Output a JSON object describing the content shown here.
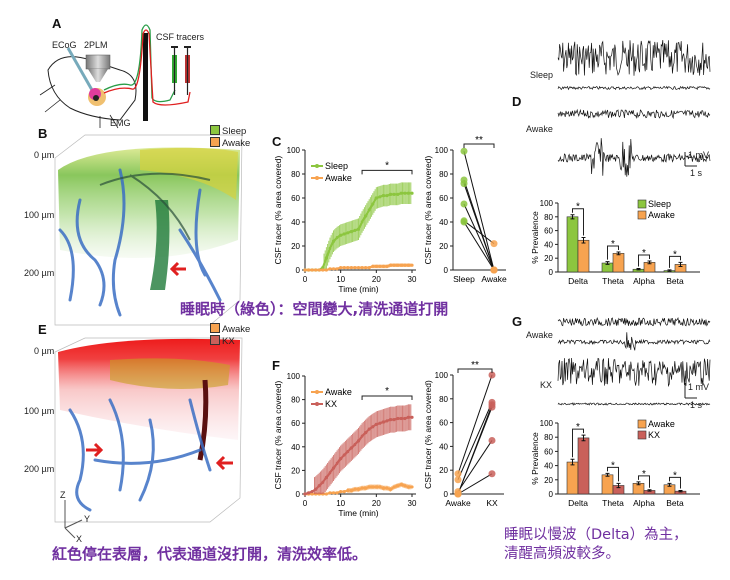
{
  "panel_labels": {
    "A": "A",
    "B": "B",
    "C": "C",
    "D": "D",
    "E": "E",
    "F": "F",
    "G": "G"
  },
  "panel_a": {
    "ecog": "ECoG",
    "twoplm": "2PLM",
    "emg": "EMG",
    "csf": "CSF tracers"
  },
  "panel_b": {
    "legend": [
      "Sleep",
      "Awake"
    ],
    "depths": [
      "0 µm",
      "100 µm",
      "200 µm"
    ]
  },
  "panel_e": {
    "legend": [
      "Awake",
      "KX"
    ],
    "depths": [
      "0 µm",
      "100 µm",
      "200 µm"
    ],
    "axes": [
      "Z",
      "Y",
      "X"
    ]
  },
  "panel_d": {
    "trace_labels": [
      "Sleep",
      "Awake"
    ],
    "scale_v": "1 mV",
    "scale_t": "1 s"
  },
  "panel_g": {
    "trace_labels": [
      "Awake",
      "KX"
    ],
    "scale_v": "1 mV",
    "scale_t": "1 s"
  },
  "captions": {
    "sleep": "睡眠時（綠色）：空間變大,清洗通道打開",
    "kx": "紅色停在表層，代表通道沒打開，清洗效率低。",
    "eeg_line1": "睡眠以慢波（Delta）為主，",
    "eeg_line2": "清醒高頻波較多。"
  },
  "colors": {
    "sleep": "#8cc63f",
    "awake": "#f7a350",
    "kx": "#c9605a",
    "caption": "#7030a0"
  },
  "chart_data": [
    {
      "id": "C",
      "type": "line",
      "xlabel": "Time (min)",
      "ylabel": "CSF tracer (% area covered)",
      "xlim": [
        0,
        30
      ],
      "ylim": [
        0,
        100
      ],
      "xticks": [
        0,
        10,
        20,
        30
      ],
      "yticks": [
        0,
        20,
        40,
        60,
        80,
        100
      ],
      "significance": {
        "range": [
          16,
          30
        ],
        "label": "*"
      },
      "x": [
        0,
        1,
        2,
        3,
        4,
        5,
        6,
        7,
        8,
        9,
        10,
        11,
        12,
        13,
        14,
        15,
        16,
        17,
        18,
        19,
        20,
        21,
        22,
        23,
        24,
        25,
        26,
        27,
        28,
        29,
        30
      ],
      "series": [
        {
          "name": "Sleep",
          "color": "#8cc63f",
          "values": [
            0,
            0,
            0,
            0,
            0,
            2,
            10,
            18,
            24,
            27,
            29,
            30,
            31,
            32,
            33,
            34,
            40,
            45,
            50,
            55,
            60,
            61,
            62,
            62,
            63,
            63,
            63,
            64,
            64,
            64,
            64
          ],
          "error": 9
        },
        {
          "name": "Awake",
          "color": "#f7a350",
          "values": [
            0,
            0,
            0,
            0,
            0,
            0,
            0,
            1,
            1,
            1,
            2,
            2,
            2,
            2,
            2,
            2,
            2,
            2,
            2,
            3,
            3,
            3,
            3,
            3,
            4,
            4,
            4,
            4,
            4,
            4,
            4
          ],
          "error": 1.5
        }
      ]
    },
    {
      "id": "C2",
      "type": "scatter",
      "categories": [
        "Sleep",
        "Awake"
      ],
      "ylabel": "CSF tracer (% area covered)",
      "ylim": [
        0,
        100
      ],
      "yticks": [
        0,
        20,
        40,
        60,
        80,
        100
      ],
      "significance": "**",
      "pairs": [
        [
          99,
          0
        ],
        [
          75,
          0
        ],
        [
          72,
          0
        ],
        [
          55,
          0
        ],
        [
          41,
          22
        ],
        [
          40,
          0
        ]
      ],
      "colors": [
        "#8cc63f",
        "#f7a350"
      ]
    },
    {
      "id": "D",
      "type": "bar",
      "categories": [
        "Delta",
        "Theta",
        "Alpha",
        "Beta"
      ],
      "ylabel": "% Prevalence",
      "ylim": [
        0,
        100
      ],
      "yticks": [
        0,
        20,
        40,
        60,
        80,
        100
      ],
      "series": [
        {
          "name": "Sleep",
          "color": "#8cc63f",
          "values": [
            80,
            13,
            4,
            2
          ],
          "error": [
            3,
            2,
            1,
            1
          ]
        },
        {
          "name": "Awake",
          "color": "#f7a350",
          "values": [
            46,
            27,
            14,
            11
          ],
          "error": [
            4,
            2,
            2,
            3
          ]
        }
      ],
      "significance": [
        "*",
        "*",
        "*",
        "*"
      ]
    },
    {
      "id": "F",
      "type": "line",
      "xlabel": "Time (min)",
      "ylabel": "CSF tracer (% area covered)",
      "xlim": [
        0,
        30
      ],
      "ylim": [
        0,
        100
      ],
      "xticks": [
        0,
        10,
        20,
        30
      ],
      "yticks": [
        0,
        20,
        40,
        60,
        80,
        100
      ],
      "significance": {
        "range": [
          16,
          30
        ],
        "label": "*"
      },
      "x": [
        0,
        1,
        2,
        3,
        4,
        5,
        6,
        7,
        8,
        9,
        10,
        11,
        12,
        13,
        14,
        15,
        16,
        17,
        18,
        19,
        20,
        21,
        22,
        23,
        24,
        25,
        26,
        27,
        28,
        29,
        30
      ],
      "series": [
        {
          "name": "Awake",
          "color": "#f7a350",
          "values": [
            0,
            0,
            0,
            0,
            0,
            0,
            0,
            1,
            1,
            1,
            2,
            2,
            3,
            3,
            4,
            4,
            5,
            5,
            6,
            6,
            6,
            6,
            5,
            5,
            4,
            6,
            7,
            8,
            7,
            6,
            6
          ],
          "error": 2
        },
        {
          "name": "KX",
          "color": "#c9605a",
          "values": [
            0,
            1,
            2,
            4,
            7,
            10,
            14,
            18,
            22,
            26,
            30,
            33,
            36,
            39,
            42,
            45,
            49,
            52,
            55,
            57,
            59,
            60,
            61,
            62,
            63,
            63,
            64,
            64,
            64,
            65,
            65
          ],
          "error": 11
        }
      ]
    },
    {
      "id": "F2",
      "type": "scatter",
      "categories": [
        "Awake",
        "KX"
      ],
      "ylabel": "CSF tracer (% area covered)",
      "ylim": [
        0,
        100
      ],
      "yticks": [
        0,
        20,
        40,
        60,
        80,
        100
      ],
      "significance": "**",
      "pairs": [
        [
          17,
          100
        ],
        [
          12,
          77
        ],
        [
          0,
          75
        ],
        [
          0,
          73
        ],
        [
          2,
          45
        ],
        [
          0,
          17
        ]
      ],
      "colors": [
        "#f7a350",
        "#c9605a"
      ]
    },
    {
      "id": "G",
      "type": "bar",
      "categories": [
        "Delta",
        "Theta",
        "Alpha",
        "Beta"
      ],
      "ylabel": "% Prevalence",
      "ylim": [
        0,
        100
      ],
      "yticks": [
        0,
        20,
        40,
        60,
        80,
        100
      ],
      "series": [
        {
          "name": "Awake",
          "color": "#f7a350",
          "values": [
            45,
            27,
            15,
            13
          ],
          "error": [
            4,
            2,
            2,
            2
          ]
        },
        {
          "name": "KX",
          "color": "#c9605a",
          "values": [
            79,
            12,
            5,
            4
          ],
          "error": [
            4,
            3,
            1,
            1
          ]
        }
      ],
      "significance": [
        "*",
        "*",
        "*",
        "*"
      ]
    }
  ]
}
